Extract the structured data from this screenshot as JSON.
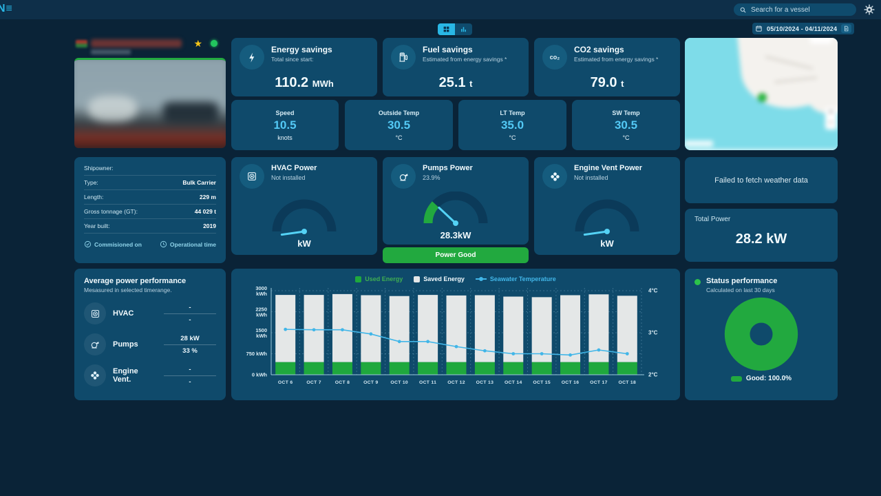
{
  "topbar": {
    "logo": "N≡",
    "search_placeholder": "Search for a vessel"
  },
  "controls": {
    "date_range": "05/10/2024 - 04/11/2024"
  },
  "colors": {
    "accent": "#29b7e5",
    "green": "#22a93f",
    "panel": "#0f4a6b",
    "background": "#0a2337",
    "value_blue": "#53c9f5",
    "bar_gray": "#e4e7e7",
    "line_cyan": "#41b6e8"
  },
  "kpis": [
    {
      "title": "Energy savings",
      "subtitle": "Total since start:",
      "value": "110.2",
      "unit": "MWh",
      "icon": "energy-bolt-icon"
    },
    {
      "title": "Fuel savings",
      "subtitle": "Estimated from energy savings *",
      "value": "25.1",
      "unit": "t",
      "icon": "fuel-pump-icon"
    },
    {
      "title": "CO2 savings",
      "subtitle": "Estimated from energy savings *",
      "value": "79.0",
      "unit": "t",
      "icon": "co2-icon"
    }
  ],
  "tiles": [
    {
      "label": "Speed",
      "value": "10.5",
      "unit": "knots"
    },
    {
      "label": "Outside Temp",
      "value": "30.5",
      "unit": "°C"
    },
    {
      "label": "LT Temp",
      "value": "35.0",
      "unit": "°C"
    },
    {
      "label": "SW Temp",
      "value": "30.5",
      "unit": "°C"
    }
  ],
  "ship_info": {
    "rows": [
      {
        "label": "Shipowner:",
        "value": ""
      },
      {
        "label": "Type:",
        "value": "Bulk Carrier"
      },
      {
        "label": "Length:",
        "value": "229 m"
      },
      {
        "label": "Gross tonnage (GT):",
        "value": "44 029 t"
      },
      {
        "label": "Year built:",
        "value": "2019"
      }
    ],
    "links": [
      {
        "label": "Commisioned on",
        "icon": "check-circle-icon"
      },
      {
        "label": "Operational time",
        "icon": "clock-icon"
      }
    ]
  },
  "gauges": [
    {
      "title": "HVAC Power",
      "subtitle": "Not installed",
      "percent": null,
      "value_label": "kW",
      "icon": "hvac-icon"
    },
    {
      "title": "Pumps Power",
      "subtitle": "23.9%",
      "percent": 23.9,
      "value_label": "28.3kW",
      "icon": "pump-icon",
      "banner": "Power Good"
    },
    {
      "title": "Engine Vent Power",
      "subtitle": "Not installed",
      "percent": null,
      "value_label": "kW",
      "icon": "fan-icon"
    }
  ],
  "weather": {
    "message": "Failed to fetch weather data"
  },
  "total_power": {
    "label": "Total Power",
    "value": "28.2 kW"
  },
  "avg_power": {
    "title": "Average power performance",
    "subtitle": "Mesasured in selected timerange.",
    "rows": [
      {
        "label": "HVAC",
        "value1": "-",
        "value2": "-",
        "icon": "hvac-icon"
      },
      {
        "label": "Pumps",
        "value1": "28 kW",
        "value2": "33 %",
        "icon": "pump-icon"
      },
      {
        "label": "Engine Vent.",
        "value1": "-",
        "value2": "-",
        "icon": "fan-icon"
      }
    ]
  },
  "status": {
    "title": "Status performance",
    "subtitle": "Calculated on last 30 days",
    "good_pct": 100.0,
    "legend_label": "Good: 100.0%"
  },
  "chart_data": {
    "type": "bar",
    "stacked": true,
    "categories": [
      "OCT 6",
      "OCT 7",
      "OCT 8",
      "OCT 9",
      "OCT 10",
      "OCT 11",
      "OCT 12",
      "OCT 13",
      "OCT 14",
      "OCT 15",
      "OCT 16",
      "OCT 17",
      "OCT 18"
    ],
    "series": [
      {
        "name": "Used Energy",
        "type": "bar",
        "color": "#1fa83d",
        "values": [
          450,
          450,
          450,
          450,
          450,
          450,
          450,
          450,
          450,
          450,
          450,
          450,
          450
        ]
      },
      {
        "name": "Saved Energy",
        "type": "bar",
        "color": "#e4e7e7",
        "values": [
          2400,
          2400,
          2430,
          2390,
          2360,
          2400,
          2380,
          2390,
          2340,
          2320,
          2390,
          2420,
          2370
        ]
      },
      {
        "name": "Seawater Temperature",
        "type": "line",
        "color": "#41b6e8",
        "axis": "right",
        "values": [
          3.08,
          3.07,
          3.07,
          2.97,
          2.79,
          2.79,
          2.67,
          2.57,
          2.5,
          2.5,
          2.47,
          2.59,
          2.5
        ]
      }
    ],
    "left_axis": {
      "unit": "kWh",
      "min": 0,
      "max": 3000,
      "ticks": [
        0,
        750,
        1500,
        2250,
        3000
      ]
    },
    "right_axis": {
      "unit": "°C",
      "min": 2,
      "max": 4,
      "ticks": [
        2,
        3,
        4
      ]
    },
    "legend_position": "top",
    "grid": true
  }
}
